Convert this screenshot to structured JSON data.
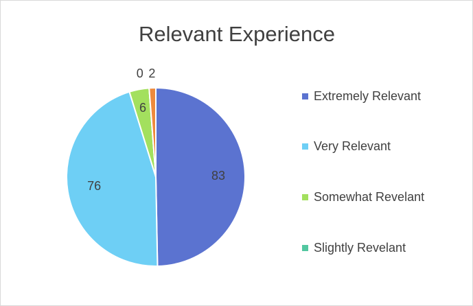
{
  "chart_data": {
    "type": "pie",
    "title": "Relevant Experience",
    "categories": [
      "Extremely Relevant",
      "Very Relevant",
      "Somewhat Revelant",
      "Slightly Revelant",
      null
    ],
    "values": [
      83,
      76,
      6,
      0,
      2
    ],
    "colors": [
      "#5b73d0",
      "#6ecff5",
      "#a3e05e",
      "#52c7a0",
      "#ee8a3c"
    ],
    "legend": "right"
  }
}
